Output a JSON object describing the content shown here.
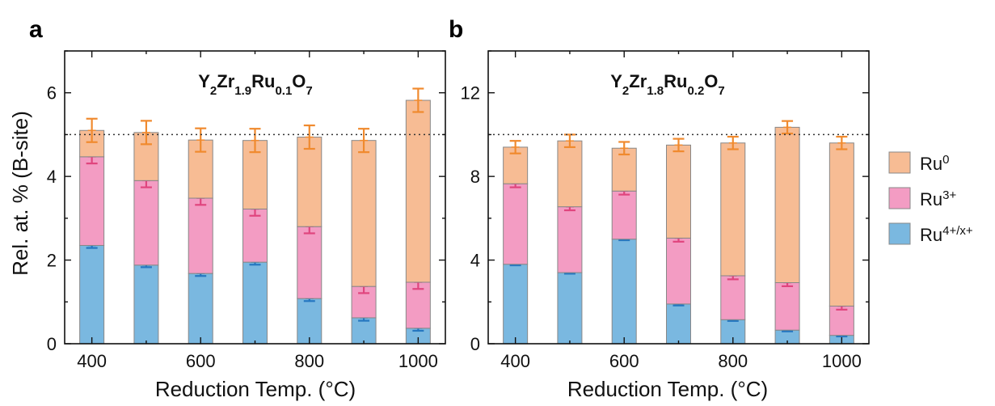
{
  "colors": {
    "ru0": "#f7bc94",
    "ru3": "#f39cc3",
    "ru4": "#7ab8e0",
    "err_ru0": "#f08a2e",
    "err_ru3": "#e0457e",
    "err_ru4": "#2677c0",
    "bar_edge": "#888888"
  },
  "legend": {
    "ru0_base": "Ru",
    "ru0_sup": "0",
    "ru3_base": "Ru",
    "ru3_sup": "3+",
    "ru4_base": "Ru",
    "ru4_sup": "4+/x+"
  },
  "shared_y_label": "Rel. at. % (B-site)",
  "chart_data": [
    {
      "type": "bar",
      "stacked": true,
      "panel_label": "a",
      "title": {
        "p1": "Y",
        "s1": "2",
        "p2": "Zr",
        "s2": "1.9",
        "p3": "Ru",
        "s3": "0.1",
        "p4": "O",
        "s4": "7"
      },
      "xlabel": "Reduction Temp. (°C)",
      "x": [
        400,
        500,
        600,
        700,
        800,
        900,
        1000
      ],
      "xticks": [
        400,
        600,
        800,
        1000
      ],
      "ylim": [
        0,
        7
      ],
      "yticks": [
        0,
        2,
        4,
        6
      ],
      "reference_line": 5,
      "series": [
        {
          "name": "Ru4+/x+",
          "values": [
            2.35,
            1.88,
            1.68,
            1.95,
            1.08,
            0.62,
            0.37
          ],
          "err": [
            0.06,
            0.05,
            0.06,
            0.06,
            0.06,
            0.07,
            0.06
          ]
        },
        {
          "name": "Ru3+",
          "values": [
            2.12,
            2.02,
            1.8,
            1.27,
            1.72,
            0.75,
            1.1
          ],
          "err": [
            0.16,
            0.16,
            0.16,
            0.16,
            0.16,
            0.16,
            0.16
          ]
        },
        {
          "name": "Ru0",
          "values": [
            0.63,
            1.15,
            1.39,
            1.64,
            2.14,
            3.49,
            4.35
          ],
          "err": [
            0.28,
            0.28,
            0.28,
            0.28,
            0.28,
            0.28,
            0.28
          ]
        }
      ]
    },
    {
      "type": "bar",
      "stacked": true,
      "panel_label": "b",
      "title": {
        "p1": "Y",
        "s1": "2",
        "p2": "Zr",
        "s2": "1.8",
        "p3": "Ru",
        "s3": "0.2",
        "p4": "O",
        "s4": "7"
      },
      "xlabel": "Reduction Temp. (°C)",
      "x": [
        400,
        500,
        600,
        700,
        800,
        900,
        1000
      ],
      "xticks": [
        400,
        600,
        800,
        1000
      ],
      "ylim": [
        0,
        14
      ],
      "yticks": [
        0,
        4,
        8,
        12
      ],
      "reference_line": 10,
      "series": [
        {
          "name": "Ru4+/x+",
          "values": [
            3.8,
            3.4,
            5.0,
            1.9,
            1.15,
            0.65,
            0.4
          ],
          "err": [
            0.05,
            0.05,
            0.05,
            0.07,
            0.06,
            0.06,
            0.05
          ]
        },
        {
          "name": "Ru3+",
          "values": [
            3.85,
            3.15,
            2.3,
            3.15,
            2.1,
            2.27,
            1.4
          ],
          "err": [
            0.17,
            0.17,
            0.17,
            0.17,
            0.17,
            0.17,
            0.17
          ]
        },
        {
          "name": "Ru0",
          "values": [
            1.75,
            3.15,
            2.05,
            4.45,
            6.35,
            7.43,
            7.8
          ],
          "err": [
            0.3,
            0.3,
            0.3,
            0.3,
            0.3,
            0.3,
            0.3
          ]
        }
      ]
    }
  ]
}
